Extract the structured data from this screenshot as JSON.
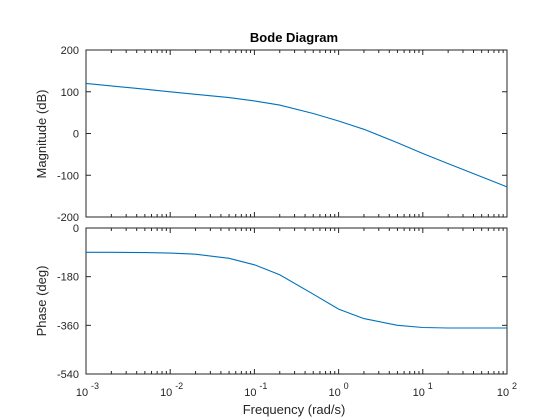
{
  "chart_data": {
    "type": "line",
    "title": "Bode Diagram",
    "xlabel": "Frequency  (rad/s)",
    "xscale": "log",
    "xlim": [
      0.001,
      100
    ],
    "xticks": [
      0.001,
      0.01,
      0.1,
      1,
      10,
      100
    ],
    "xtick_base": "10",
    "xtick_exponents": [
      "-3",
      "-2",
      "-1",
      "0",
      "1",
      "2"
    ],
    "line_color": "#0072BD",
    "panels": [
      {
        "name": "magnitude",
        "ylabel": "Magnitude (dB)",
        "ylim": [
          -200,
          200
        ],
        "yticks": [
          200,
          100,
          0,
          -100,
          -200
        ],
        "ytick_labels": [
          "200",
          "100",
          "0",
          "-100",
          "-200"
        ],
        "series": [
          {
            "x": [
              0.001,
              0.002,
              0.005,
              0.01,
              0.02,
              0.05,
              0.1,
              0.2,
              0.5,
              1,
              2,
              5,
              10,
              20,
              50,
              100
            ],
            "values": [
              120,
              114,
              106,
              100,
              94,
              86,
              78,
              68,
              48,
              30,
              10,
              -22,
              -48,
              -72,
              -104,
              -128
            ]
          }
        ]
      },
      {
        "name": "phase",
        "ylabel": "Phase (deg)",
        "ylim": [
          -540,
          0
        ],
        "yticks": [
          0,
          -180,
          -360,
          -540
        ],
        "ytick_labels": [
          "0",
          "-180",
          "-360",
          "-540"
        ],
        "series": [
          {
            "x": [
              0.001,
              0.002,
              0.005,
              0.01,
              0.02,
              0.05,
              0.1,
              0.2,
              0.5,
              1,
              2,
              5,
              10,
              20,
              50,
              100
            ],
            "values": [
              -90,
              -90,
              -91,
              -93,
              -97,
              -112,
              -136,
              -173,
              -245,
              -300,
              -335,
              -360,
              -368,
              -370,
              -370,
              -370
            ]
          }
        ]
      }
    ]
  }
}
